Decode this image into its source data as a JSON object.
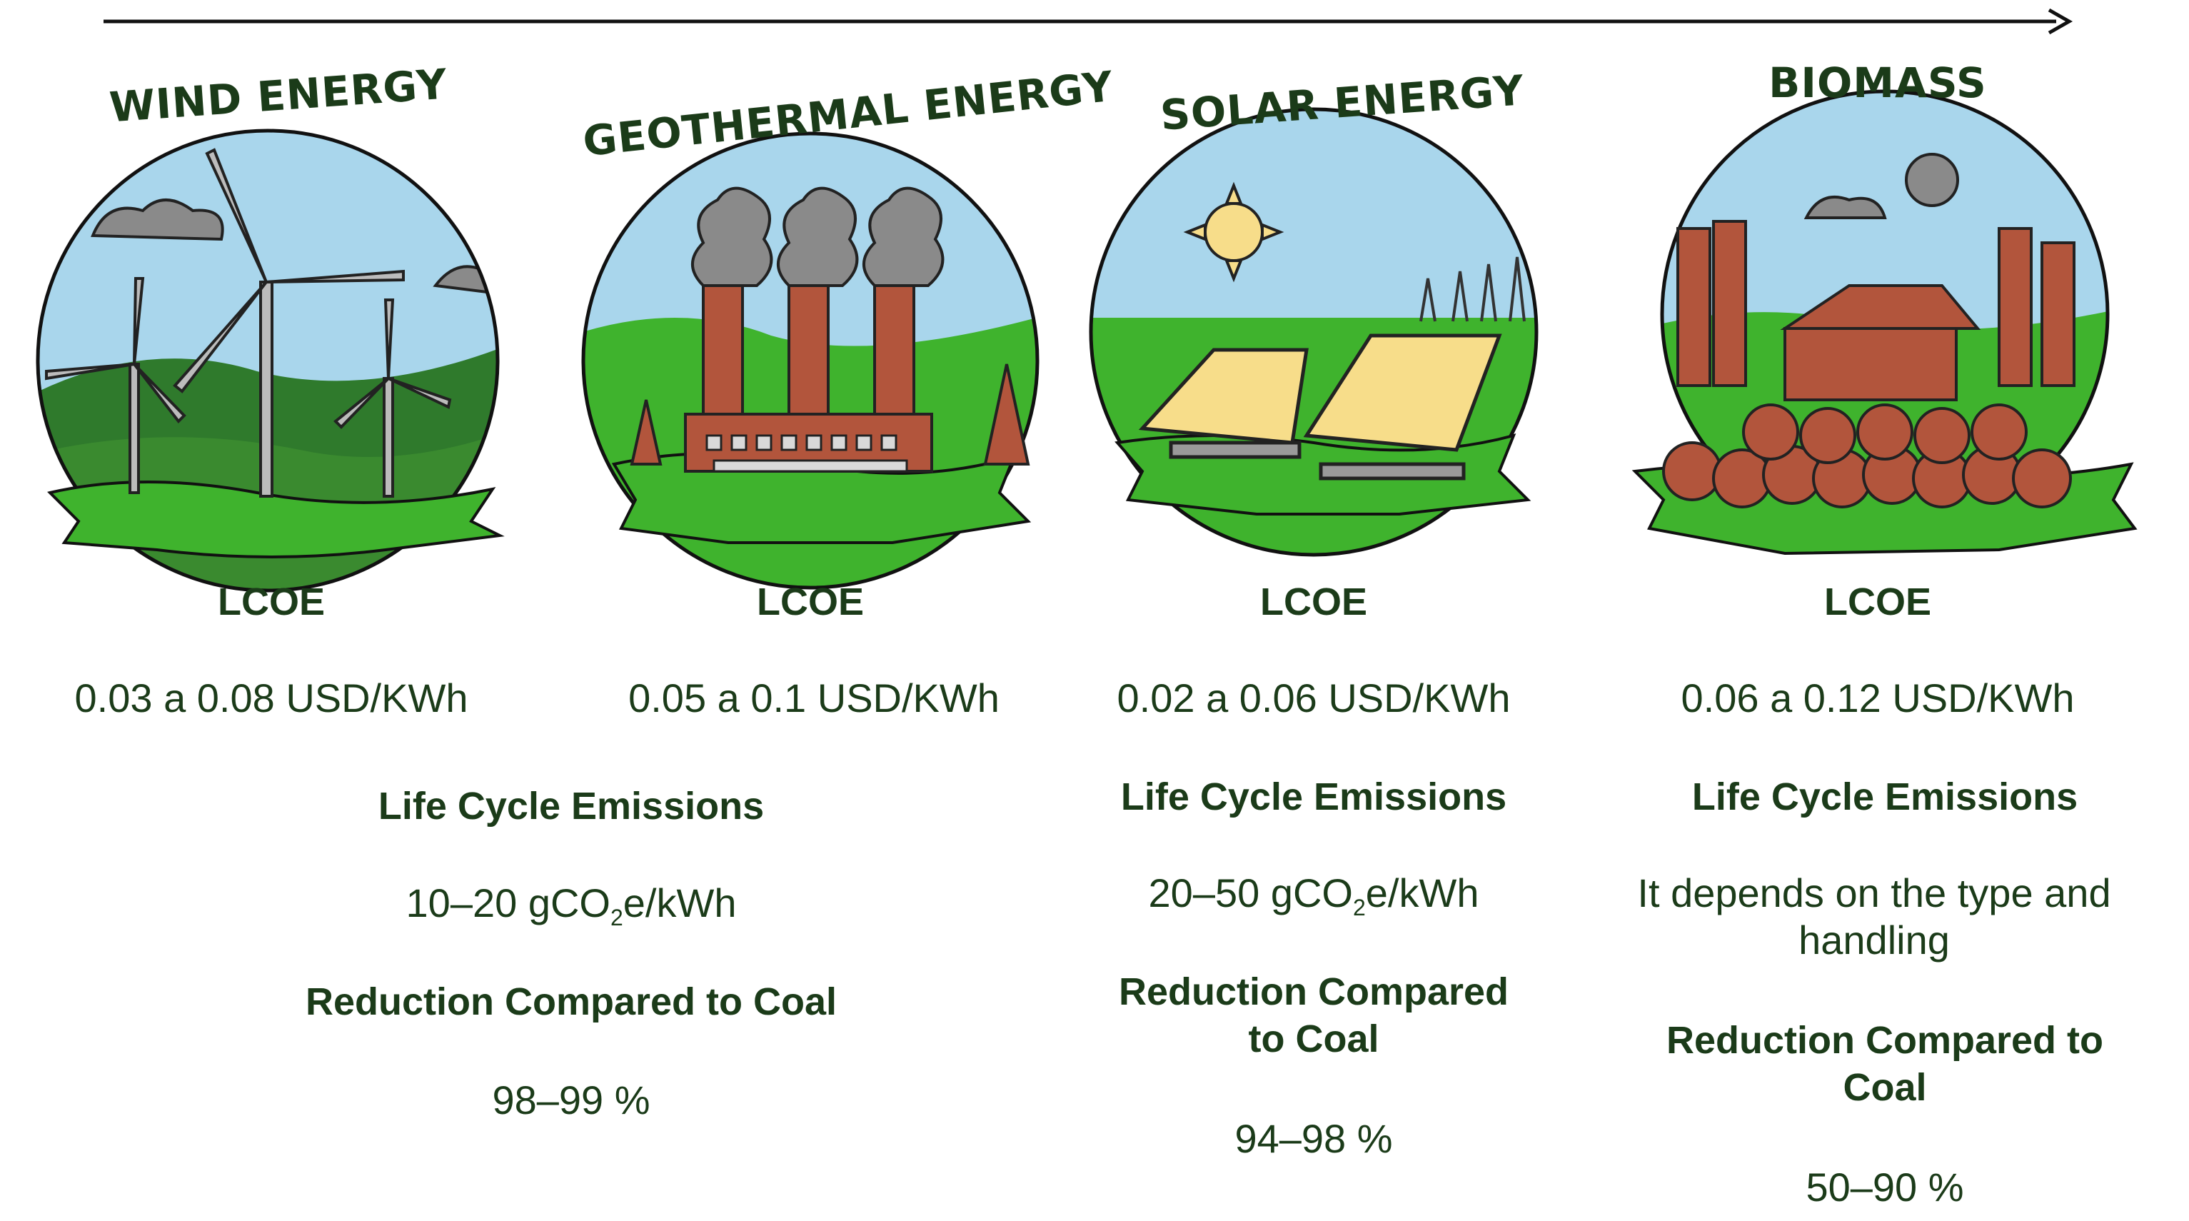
{
  "timeline": {
    "arrow": "right-arrow"
  },
  "colors": {
    "text": "#1b3b19",
    "sky": "#a9d6ec",
    "grass": "#3fb32d",
    "hill": "#2f7a2c",
    "brick": "#b2553c",
    "smoke": "#8a8a8a",
    "panel": "#f7dd8a"
  },
  "columns": [
    {
      "title": "WIND ENERGY",
      "icon": "wind-turbine-icon",
      "lcoe_label": "LCOE",
      "lcoe_value": "0.03 a 0.08 USD/KWh"
    },
    {
      "title": "GEOTHERMAL ENERGY",
      "icon": "geothermal-plant-icon",
      "lcoe_label": "LCOE",
      "lcoe_value": "0.05 a 0.1 USD/KWh"
    },
    {
      "title": "SOLAR ENERGY",
      "icon": "solar-panel-icon",
      "lcoe_label": "LCOE",
      "lcoe_value": "0.02 a 0.06 USD/KWh",
      "emissions_label": "Life Cycle Emissions",
      "emissions_prefix": "20–50 gCO",
      "emissions_sub": "2",
      "emissions_suffix": "e/kWh",
      "reduction_label_line1": "Reduction Compared",
      "reduction_label_line2": "to Coal",
      "reduction_value": "94–98 %"
    },
    {
      "title": "BIOMASS",
      "icon": "biomass-plant-icon",
      "lcoe_label": "LCOE",
      "lcoe_value": "0.06 a 0.12 USD/KWh",
      "emissions_label": "Life Cycle Emissions",
      "emissions_line1": "It depends on the type and",
      "emissions_line2": "handling",
      "reduction_label_line1": "Reduction Compared to",
      "reduction_label_line2": "Coal",
      "reduction_value": "50–90 %"
    }
  ],
  "shared_wind_geothermal": {
    "emissions_label": "Life Cycle Emissions",
    "emissions_prefix": "10–20 gCO",
    "emissions_sub": "2",
    "emissions_suffix": "e/kWh",
    "reduction_label": "Reduction Compared to Coal",
    "reduction_value": "98–99 %"
  }
}
